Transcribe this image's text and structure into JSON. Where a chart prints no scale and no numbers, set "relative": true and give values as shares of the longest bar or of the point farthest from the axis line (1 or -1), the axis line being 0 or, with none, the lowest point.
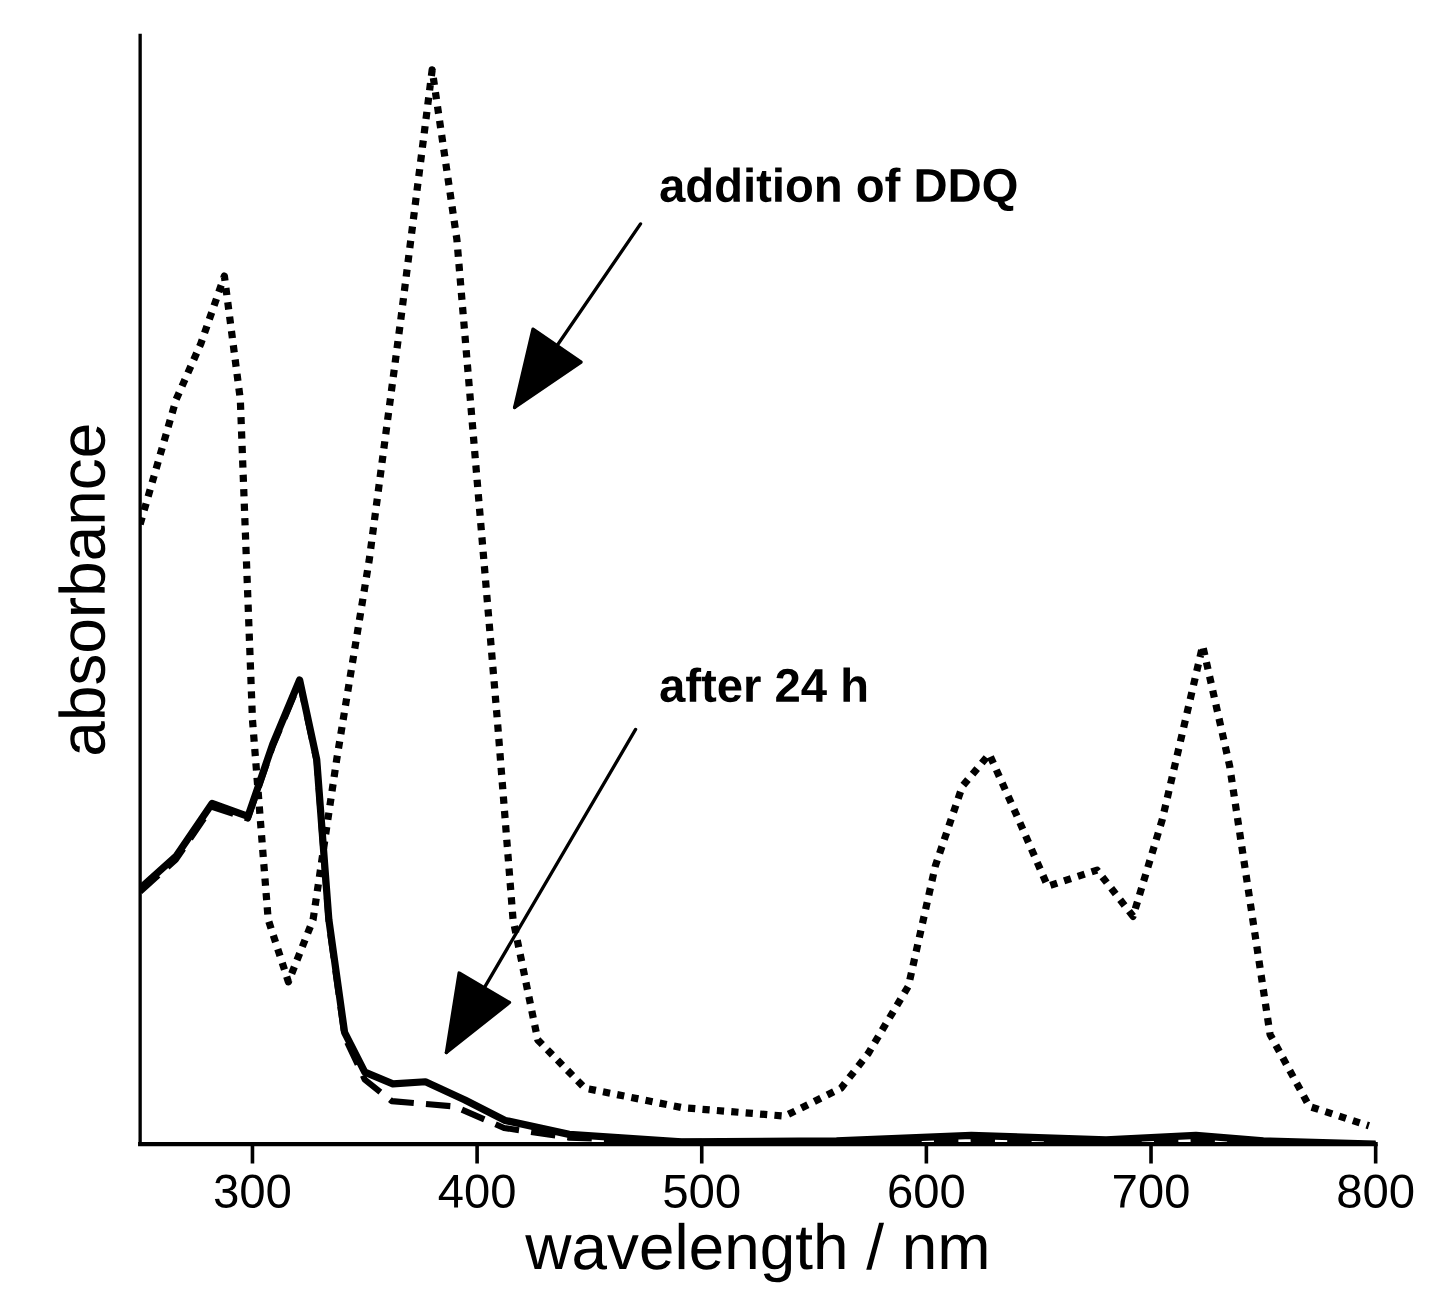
{
  "chart_data": {
    "type": "line",
    "relative": true,
    "xlabel": "wavelength / nm",
    "ylabel": "absorbance",
    "xlim": [
      250,
      800
    ],
    "xticks": [
      300,
      400,
      500,
      600,
      700,
      800
    ],
    "tick_labels": "x",
    "grid": false,
    "legend": false,
    "series": [
      {
        "color": "#000000",
        "line_style": "dotted",
        "x": [
          250,
          266,
          277,
          287.5,
          294.6,
          300,
          307,
          316,
          327,
          337.5,
          352,
          366,
          380,
          391,
          400,
          409,
          416,
          427,
          448,
          491,
          537,
          562,
          574,
          592,
          604,
          616,
          628,
          640,
          654,
          676,
          692,
          705,
          723,
          735,
          744,
          753,
          770.5,
          797
        ],
        "values": [
          0.577,
          0.693,
          0.745,
          0.808,
          0.693,
          0.395,
          0.209,
          0.151,
          0.209,
          0.358,
          0.544,
          0.767,
          1.0,
          0.842,
          0.618,
          0.395,
          0.209,
          0.097,
          0.052,
          0.034,
          0.026,
          0.052,
          0.084,
          0.147,
          0.259,
          0.333,
          0.363,
          0.307,
          0.24,
          0.255,
          0.212,
          0.302,
          0.464,
          0.352,
          0.227,
          0.102,
          0.035,
          0.017
        ]
      },
      {
        "color": "#000000",
        "line_style": "dashed",
        "x": [
          250,
          266,
          282,
          298,
          309,
          321,
          328.6,
          334,
          341,
          350,
          362,
          390,
          412,
          441,
          491,
          560,
          625,
          680,
          720,
          760,
          800
        ],
        "values": [
          0.235,
          0.265,
          0.314,
          0.303,
          0.37,
          0.43,
          0.356,
          0.205,
          0.1,
          0.06,
          0.04,
          0.035,
          0.015,
          0.006,
          0.002,
          0.002,
          0.005,
          0.003,
          0.005,
          0.002,
          0.0
        ]
      },
      {
        "color": "#000000",
        "line_style": "solid",
        "x": [
          250,
          266,
          282,
          298,
          309,
          321,
          328.6,
          334,
          341,
          350,
          362.5,
          377,
          394.6,
          412.5,
          441,
          491,
          560,
          620,
          680,
          720,
          750,
          800
        ],
        "values": [
          0.238,
          0.268,
          0.317,
          0.305,
          0.372,
          0.432,
          0.358,
          0.209,
          0.104,
          0.067,
          0.056,
          0.058,
          0.041,
          0.022,
          0.009,
          0.002,
          0.003,
          0.008,
          0.004,
          0.008,
          0.003,
          0.0
        ]
      }
    ],
    "annotations": [
      "addition of DDQ",
      "after 24 h"
    ]
  }
}
